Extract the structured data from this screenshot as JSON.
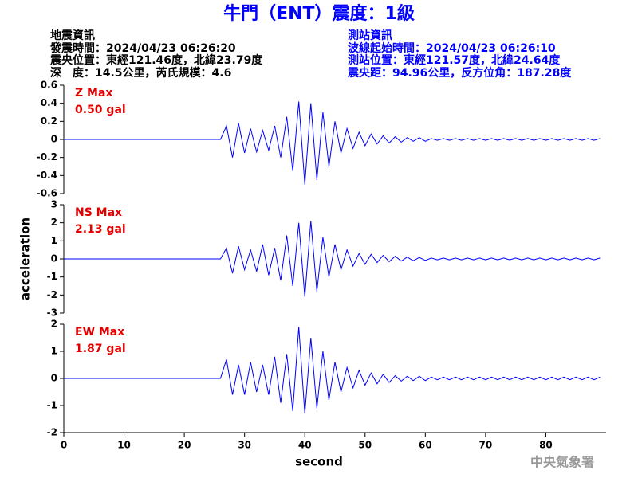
{
  "header": {
    "title": "牛門（ENT）震度：1級",
    "left": [
      "地震資訊",
      "發震時間：2024/04/23 06:26:20",
      "震央位置：東經121.46度，北緯23.79度",
      "深　度：14.5公里，芮氏規模：4.6"
    ],
    "right": [
      "測站資訊",
      "波線起始時間：2024/04/23 06:26:10",
      "測站位置：東經121.57度，北緯24.64度",
      "震央距：94.96公里，反方位角：187.28度"
    ],
    "watermark": "中央氣象署"
  },
  "chart_data": [
    {
      "type": "line",
      "annotation": [
        "Z Max",
        "0.50 gal"
      ],
      "xlim": [
        0,
        90
      ],
      "ylim": [
        -0.6,
        0.6
      ],
      "yticks": [
        -0.6,
        -0.4,
        -0.2,
        0,
        0.2,
        0.4,
        0.6
      ],
      "x": [
        0,
        1,
        2,
        3,
        4,
        5,
        6,
        7,
        8,
        9,
        10,
        11,
        12,
        13,
        14,
        15,
        16,
        17,
        18,
        19,
        20,
        21,
        22,
        23,
        24,
        25,
        26,
        27,
        28,
        29,
        30,
        31,
        32,
        33,
        34,
        35,
        36,
        37,
        38,
        39,
        40,
        41,
        42,
        43,
        44,
        45,
        46,
        47,
        48,
        49,
        50,
        51,
        52,
        53,
        54,
        55,
        56,
        57,
        58,
        59,
        60,
        61,
        62,
        63,
        64,
        65,
        66,
        67,
        68,
        69,
        70,
        71,
        72,
        73,
        74,
        75,
        76,
        77,
        78,
        79,
        80,
        81,
        82,
        83,
        84,
        85,
        86,
        87,
        88,
        89
      ],
      "series": [
        {
          "color": "#0000ff",
          "values": [
            0,
            0,
            0,
            0,
            0,
            0,
            0,
            0,
            0,
            0,
            0,
            0,
            0,
            0,
            0,
            0,
            0,
            0,
            0,
            0,
            0,
            0,
            0,
            0,
            0,
            0,
            0,
            0.15,
            -0.2,
            0.18,
            -0.15,
            0.12,
            -0.14,
            0.1,
            -0.12,
            0.15,
            -0.2,
            0.25,
            -0.35,
            0.42,
            -0.5,
            0.4,
            -0.45,
            0.3,
            -0.3,
            0.2,
            -0.15,
            0.12,
            -0.1,
            0.08,
            -0.07,
            0.06,
            -0.05,
            0.04,
            -0.04,
            0.03,
            -0.03,
            0.02,
            -0.02,
            0.02,
            -0.02,
            0.01,
            -0.01,
            0.01,
            -0.01,
            0.01,
            -0.01,
            0.01,
            -0.01,
            0.01,
            -0.01,
            0.01,
            -0.01,
            0.01,
            -0.01,
            0.01,
            -0.01,
            0.01,
            -0.01,
            0.01,
            -0.01,
            0.01,
            -0.01,
            0.01,
            -0.01,
            0.01,
            -0.01,
            0.01,
            -0.01,
            0.01
          ]
        }
      ]
    },
    {
      "type": "line",
      "annotation": [
        "NS Max",
        "2.13 gal"
      ],
      "ylabel": "acceleration",
      "xlim": [
        0,
        90
      ],
      "ylim": [
        -3,
        3
      ],
      "yticks": [
        -3,
        -2,
        -1,
        0,
        1,
        2,
        3
      ],
      "x": [
        0,
        1,
        2,
        3,
        4,
        5,
        6,
        7,
        8,
        9,
        10,
        11,
        12,
        13,
        14,
        15,
        16,
        17,
        18,
        19,
        20,
        21,
        22,
        23,
        24,
        25,
        26,
        27,
        28,
        29,
        30,
        31,
        32,
        33,
        34,
        35,
        36,
        37,
        38,
        39,
        40,
        41,
        42,
        43,
        44,
        45,
        46,
        47,
        48,
        49,
        50,
        51,
        52,
        53,
        54,
        55,
        56,
        57,
        58,
        59,
        60,
        61,
        62,
        63,
        64,
        65,
        66,
        67,
        68,
        69,
        70,
        71,
        72,
        73,
        74,
        75,
        76,
        77,
        78,
        79,
        80,
        81,
        82,
        83,
        84,
        85,
        86,
        87,
        88,
        89
      ],
      "series": [
        {
          "color": "#0000ff",
          "values": [
            0,
            0,
            0,
            0,
            0,
            0,
            0,
            0,
            0,
            0,
            0,
            0,
            0,
            0,
            0,
            0,
            0,
            0,
            0,
            0,
            0,
            0,
            0,
            0,
            0,
            0,
            0,
            0.6,
            -0.8,
            0.7,
            -0.6,
            0.5,
            -0.7,
            0.8,
            -0.9,
            0.6,
            -1.2,
            1.3,
            -1.5,
            2.0,
            -2.1,
            2.1,
            -1.8,
            1.2,
            -1.0,
            0.8,
            -0.6,
            0.5,
            -0.4,
            0.3,
            -0.3,
            0.25,
            -0.2,
            0.2,
            -0.15,
            0.15,
            -0.12,
            0.1,
            -0.1,
            0.08,
            -0.08,
            0.05,
            -0.05,
            0.05,
            -0.05,
            0.05,
            -0.05,
            0.05,
            -0.05,
            0.05,
            -0.05,
            0.05,
            -0.05,
            0.05,
            -0.05,
            0.05,
            -0.05,
            0.05,
            -0.05,
            0.05,
            -0.05,
            0.05,
            -0.05,
            0.05,
            -0.05,
            0.05,
            -0.05,
            0.05,
            -0.05,
            0.05
          ]
        }
      ]
    },
    {
      "type": "line",
      "annotation": [
        "EW Max",
        "1.87 gal"
      ],
      "xlabel": "second",
      "xlim": [
        0,
        90
      ],
      "xticks": [
        0,
        10,
        20,
        30,
        40,
        50,
        60,
        70,
        80
      ],
      "ylim": [
        -2,
        2
      ],
      "yticks": [
        -2,
        -1,
        0,
        1,
        2
      ],
      "x": [
        0,
        1,
        2,
        3,
        4,
        5,
        6,
        7,
        8,
        9,
        10,
        11,
        12,
        13,
        14,
        15,
        16,
        17,
        18,
        19,
        20,
        21,
        22,
        23,
        24,
        25,
        26,
        27,
        28,
        29,
        30,
        31,
        32,
        33,
        34,
        35,
        36,
        37,
        38,
        39,
        40,
        41,
        42,
        43,
        44,
        45,
        46,
        47,
        48,
        49,
        50,
        51,
        52,
        53,
        54,
        55,
        56,
        57,
        58,
        59,
        60,
        61,
        62,
        63,
        64,
        65,
        66,
        67,
        68,
        69,
        70,
        71,
        72,
        73,
        74,
        75,
        76,
        77,
        78,
        79,
        80,
        81,
        82,
        83,
        84,
        85,
        86,
        87,
        88,
        89
      ],
      "series": [
        {
          "color": "#0000ff",
          "values": [
            0,
            0,
            0,
            0,
            0,
            0,
            0,
            0,
            0,
            0,
            0,
            0,
            0,
            0,
            0,
            0,
            0,
            0,
            0,
            0,
            0,
            0,
            0,
            0,
            0,
            0,
            0,
            0.7,
            -0.6,
            0.5,
            -0.6,
            0.6,
            -0.5,
            0.5,
            -0.6,
            0.8,
            -0.9,
            0.9,
            -1.2,
            1.9,
            -1.3,
            1.5,
            -1.1,
            1.0,
            -0.8,
            0.6,
            -0.5,
            0.4,
            -0.35,
            0.3,
            -0.25,
            0.2,
            -0.2,
            0.15,
            -0.15,
            0.1,
            -0.1,
            0.08,
            -0.08,
            0.08,
            -0.08,
            0.05,
            -0.05,
            0.05,
            -0.05,
            0.05,
            -0.05,
            0.05,
            -0.05,
            0.05,
            -0.05,
            0.05,
            -0.05,
            0.05,
            -0.05,
            0.05,
            -0.05,
            0.05,
            -0.05,
            0.05,
            -0.05,
            0.05,
            -0.05,
            0.05,
            -0.05,
            0.05,
            -0.05,
            0.05,
            -0.05,
            0.05
          ]
        }
      ]
    }
  ]
}
